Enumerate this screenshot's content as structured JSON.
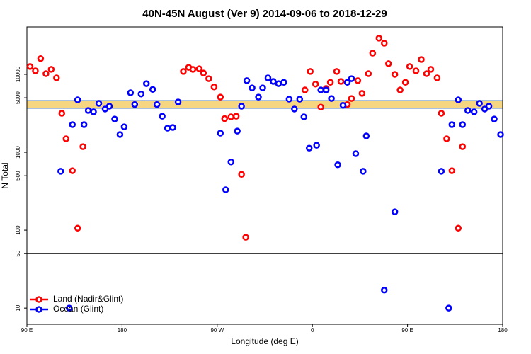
{
  "chart_data": {
    "type": "scatter",
    "title": "40N-45N August (Ver 9)   2014-09-06 to 2018-12-29",
    "x_label": "Longitude (deg E)",
    "y_label": "N Total",
    "log_y": true,
    "legend": "bottomleft",
    "hline": 50,
    "xlim": [
      90,
      540
    ],
    "ylim": [
      6.2,
      40600
    ],
    "xticks": [
      {
        "value": 90,
        "label": "90 E"
      },
      180,
      {
        "value": 270,
        "label": "90 W"
      },
      {
        "value": 360,
        "label": "0"
      },
      {
        "value": 450,
        "label": "90 E"
      },
      {
        "value": 540,
        "label": "180"
      }
    ],
    "yticks": [
      10,
      50,
      100,
      500,
      1000,
      5000,
      10000
    ],
    "series": [
      {
        "name": "Land (Nadir&Glint)",
        "color": "#ff0000",
        "x": [
          93,
          98,
          103,
          108,
          113,
          118,
          123,
          127,
          133,
          138,
          143,
          238,
          243,
          247,
          253,
          257,
          262,
          267,
          273,
          277,
          283,
          288,
          293,
          297,
          353,
          358,
          363,
          368,
          373,
          377,
          383,
          387,
          393,
          397,
          403,
          407,
          413,
          417,
          423,
          428,
          432,
          438,
          443,
          448,
          452,
          458,
          463,
          468,
          472,
          478,
          482,
          487,
          492,
          498,
          502
        ],
        "values": [
          12600,
          11100,
          15900,
          10200,
          11600,
          9000,
          3160,
          1490,
          580,
          106,
          1180,
          10900,
          12300,
          11600,
          11800,
          10400,
          8800,
          6900,
          5100,
          2700,
          2850,
          2900,
          520,
          81,
          6300,
          10900,
          7500,
          3800,
          6600,
          7900,
          10900,
          8100,
          4100,
          4900,
          8300,
          5700,
          10200,
          18700,
          29100,
          25100,
          13700,
          10000,
          6300,
          7900,
          12600,
          11100,
          15500,
          10200,
          11600,
          9000,
          3160,
          1490,
          580,
          106,
          1180
        ]
      },
      {
        "name": "Ocean (Glint)",
        "color": "#0000ff",
        "x": [
          122,
          130,
          133,
          138,
          144,
          148,
          153,
          158,
          164,
          168,
          173,
          178,
          182,
          188,
          192,
          198,
          203,
          209,
          213,
          218,
          223,
          228,
          233,
          273,
          278,
          283,
          289,
          293,
          298,
          303,
          309,
          313,
          318,
          323,
          328,
          333,
          338,
          343,
          348,
          352,
          357,
          364,
          368,
          373,
          378,
          384,
          389,
          393,
          397,
          401,
          408,
          411,
          428,
          438,
          482,
          489,
          492,
          498,
          502,
          507,
          513,
          518,
          523,
          527,
          532,
          538
        ],
        "values": [
          570,
          10,
          2260,
          4700,
          2260,
          3440,
          3300,
          4240,
          3590,
          3900,
          2670,
          1690,
          2120,
          5800,
          4100,
          5600,
          7600,
          6400,
          4100,
          2900,
          2040,
          2080,
          4420,
          1760,
          330,
          750,
          1870,
          3900,
          8300,
          6700,
          5100,
          6700,
          9000,
          8100,
          7600,
          7900,
          4800,
          3590,
          4800,
          2850,
          1130,
          1230,
          6300,
          6300,
          4900,
          690,
          4000,
          7900,
          8800,
          960,
          570,
          1620,
          17,
          172,
          570,
          10,
          2260,
          4700,
          2260,
          3440,
          3300,
          4240,
          3590,
          3900,
          2670,
          1690
        ]
      }
    ]
  }
}
